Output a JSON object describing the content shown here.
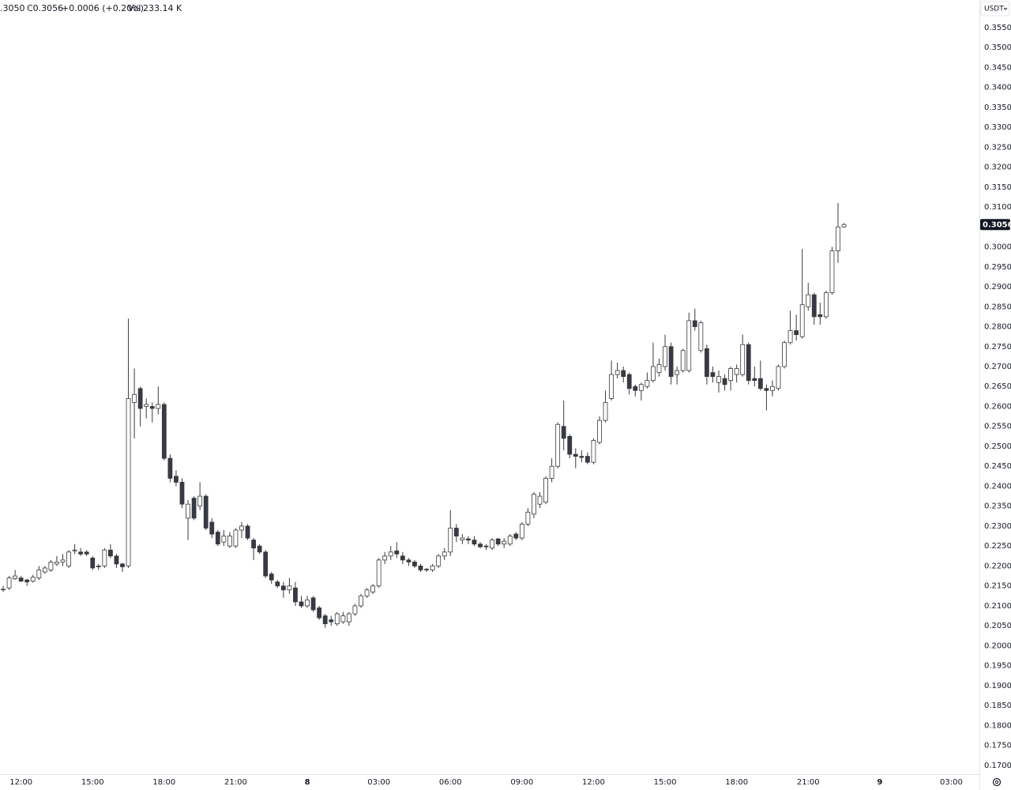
{
  "chart_data": {
    "type": "candlestick",
    "header": {
      "open_text": ".3050",
      "close_text": "C0.3056",
      "change_text": "+0.0006 (+0.20%)",
      "volume_label": "Vol",
      "volume_text": "233.14 K"
    },
    "currency": "USDT",
    "categories": [
      null,
      null,
      null,
      "12:00",
      null,
      null,
      null,
      null,
      null,
      null,
      null,
      null,
      null,
      null,
      null,
      "15:00",
      null,
      null,
      null,
      null,
      null,
      null,
      null,
      null,
      null,
      null,
      null,
      "18:00",
      null,
      null,
      null,
      null,
      null,
      null,
      null,
      null,
      null,
      null,
      null,
      "21:00",
      null,
      null,
      null,
      null,
      null,
      null,
      null,
      null,
      null,
      null,
      null,
      "8",
      null,
      null,
      null,
      null,
      null,
      null,
      null,
      null,
      null,
      null,
      null,
      "03:00",
      null,
      null,
      null,
      null,
      null,
      null,
      null,
      null,
      null,
      null,
      null,
      "06:00",
      null,
      null,
      null,
      null,
      null,
      null,
      null,
      null,
      null,
      null,
      null,
      "09:00",
      null,
      null,
      null,
      null,
      null,
      null,
      null,
      null,
      null,
      null,
      null,
      "12:00",
      null,
      null,
      null,
      null,
      null,
      null,
      null,
      null,
      null,
      null,
      null,
      "15:00",
      null,
      null,
      null,
      null,
      null,
      null,
      null,
      null,
      null,
      null,
      null,
      "18:00",
      null,
      null,
      null,
      null,
      null,
      null,
      null,
      null,
      null,
      null,
      null,
      "21:00",
      null,
      null,
      null,
      null,
      null,
      null,
      null,
      null,
      null,
      null,
      null,
      "9",
      null,
      null,
      null,
      null,
      null,
      null,
      null,
      null,
      null,
      null,
      null,
      "03:00",
      null,
      null,
      null,
      null
    ],
    "open": [
      0.214,
      0.2145,
      0.2168,
      0.217,
      0.2165,
      0.2162,
      0.217,
      0.2185,
      0.219,
      0.2205,
      0.221,
      0.22,
      0.2238,
      0.2235,
      0.2235,
      0.222,
      0.22,
      0.22,
      0.224,
      0.2225,
      0.2205,
      0.22,
      0.261,
      0.2645,
      0.26,
      0.26,
      0.2595,
      0.2605,
      0.247,
      0.2425,
      0.241,
      0.232,
      0.237,
      0.235,
      0.2375,
      0.231,
      0.2285,
      0.226,
      0.225,
      0.225,
      0.229,
      0.23,
      0.2265,
      0.225,
      0.2235,
      0.218,
      0.216,
      0.215,
      0.214,
      0.2145,
      0.211,
      0.21,
      0.212,
      0.2095,
      0.2075,
      0.2065,
      0.2055,
      0.206,
      0.206,
      0.208,
      0.21,
      0.2125,
      0.2135,
      0.215,
      0.2215,
      0.2225,
      0.2238,
      0.2225,
      0.2215,
      0.221,
      0.22,
      0.2192,
      0.219,
      0.22,
      0.2225,
      0.2235,
      0.2295,
      0.2265,
      0.2268,
      0.2265,
      0.2255,
      0.225,
      0.2245,
      0.2268,
      0.2255,
      0.2255,
      0.228,
      0.227,
      0.2305,
      0.233,
      0.2355,
      0.236,
      0.242,
      0.245,
      0.255,
      0.2525,
      0.248,
      0.2475,
      0.2475,
      0.246,
      0.251,
      0.2565,
      0.262,
      0.268,
      0.269,
      0.268,
      0.265,
      0.264,
      0.265,
      0.2665,
      0.2685,
      0.27,
      0.275,
      0.268,
      0.269,
      0.269,
      0.2815,
      0.274,
      0.2745,
      0.2685,
      0.266,
      0.267,
      0.2665,
      0.268,
      0.268,
      0.2755,
      0.267,
      0.267,
      0.2645,
      0.264,
      0.2645,
      0.27,
      0.276,
      0.279,
      0.2775,
      0.285,
      0.288,
      0.283,
      0.2825,
      0.2885,
      0.299,
      0.305,
      null,
      null,
      null,
      null,
      null,
      null,
      null,
      null,
      null,
      null,
      null,
      null,
      null,
      null,
      null,
      null,
      null,
      null,
      null,
      null,
      null,
      null
    ],
    "high": [
      0.215,
      0.2175,
      0.219,
      0.2175,
      0.2168,
      0.2178,
      0.22,
      0.22,
      0.2215,
      0.2225,
      0.223,
      0.224,
      0.2255,
      0.2245,
      0.224,
      0.2225,
      0.2205,
      0.2245,
      0.2255,
      0.223,
      0.2208,
      0.282,
      0.2695,
      0.265,
      0.262,
      0.261,
      0.265,
      0.261,
      0.248,
      0.244,
      0.242,
      0.2365,
      0.2375,
      0.241,
      0.238,
      0.232,
      0.229,
      0.229,
      0.2285,
      0.2295,
      0.231,
      0.2305,
      0.227,
      0.2255,
      0.224,
      0.2185,
      0.2165,
      0.216,
      0.217,
      0.216,
      0.2125,
      0.2125,
      0.2125,
      0.21,
      0.208,
      0.2075,
      0.2085,
      0.2085,
      0.2085,
      0.2105,
      0.213,
      0.2145,
      0.2155,
      0.222,
      0.2235,
      0.225,
      0.226,
      0.2235,
      0.222,
      0.2215,
      0.2205,
      0.2195,
      0.2205,
      0.223,
      0.2245,
      0.234,
      0.2305,
      0.228,
      0.2275,
      0.2275,
      0.226,
      0.2255,
      0.227,
      0.227,
      0.227,
      0.228,
      0.2285,
      0.231,
      0.2345,
      0.2385,
      0.2385,
      0.2425,
      0.247,
      0.256,
      0.2615,
      0.253,
      0.2495,
      0.249,
      0.2485,
      0.252,
      0.2575,
      0.264,
      0.2715,
      0.271,
      0.27,
      0.2685,
      0.2655,
      0.266,
      0.2685,
      0.276,
      0.272,
      0.278,
      0.276,
      0.27,
      0.2745,
      0.2835,
      0.2845,
      0.2815,
      0.2755,
      0.27,
      0.269,
      0.268,
      0.27,
      0.2705,
      0.278,
      0.276,
      0.27,
      0.2715,
      0.2655,
      0.2665,
      0.2705,
      0.2765,
      0.284,
      0.283,
      0.2995,
      0.291,
      0.2885,
      0.286,
      0.289,
      0.3,
      0.311,
      0.306,
      null,
      null,
      null,
      null,
      null,
      null,
      null,
      null,
      null,
      null,
      null,
      null,
      null,
      null,
      null,
      null,
      null,
      null,
      null,
      null,
      null,
      null
    ],
    "low": [
      0.2135,
      0.214,
      0.2165,
      0.216,
      0.215,
      0.2158,
      0.2165,
      0.218,
      0.2185,
      0.22,
      0.22,
      0.2195,
      0.223,
      0.2225,
      0.2225,
      0.219,
      0.219,
      0.2195,
      0.222,
      0.2195,
      0.2185,
      0.2195,
      0.252,
      0.255,
      0.257,
      0.256,
      0.258,
      0.2465,
      0.241,
      0.24,
      0.2345,
      0.2265,
      0.2315,
      0.234,
      0.229,
      0.227,
      0.225,
      0.225,
      0.2245,
      0.2245,
      0.227,
      0.2265,
      0.2215,
      0.223,
      0.217,
      0.2155,
      0.2145,
      0.212,
      0.213,
      0.21,
      0.2095,
      0.2095,
      0.2085,
      0.2065,
      0.2045,
      0.205,
      0.205,
      0.2055,
      0.205,
      0.2075,
      0.2095,
      0.212,
      0.213,
      0.2145,
      0.2205,
      0.2215,
      0.222,
      0.2205,
      0.22,
      0.2195,
      0.2185,
      0.2185,
      0.2185,
      0.2195,
      0.2215,
      0.2225,
      0.226,
      0.2255,
      0.2255,
      0.225,
      0.2245,
      0.224,
      0.224,
      0.225,
      0.2245,
      0.225,
      0.2265,
      0.2265,
      0.23,
      0.232,
      0.2345,
      0.2355,
      0.241,
      0.2445,
      0.249,
      0.247,
      0.2445,
      0.246,
      0.2455,
      0.2455,
      0.2505,
      0.256,
      0.2615,
      0.267,
      0.266,
      0.263,
      0.2625,
      0.2615,
      0.2645,
      0.266,
      0.2675,
      0.269,
      0.2655,
      0.2655,
      0.2685,
      0.2685,
      0.279,
      0.2735,
      0.2655,
      0.266,
      0.2635,
      0.264,
      0.264,
      0.266,
      0.2675,
      0.2655,
      0.265,
      0.264,
      0.259,
      0.2625,
      0.264,
      0.2695,
      0.2755,
      0.2765,
      0.277,
      0.284,
      0.2805,
      0.2805,
      0.282,
      0.288,
      0.296,
      0.3048,
      null,
      null,
      null,
      null,
      null,
      null,
      null,
      null,
      null,
      null,
      null,
      null,
      null,
      null,
      null,
      null,
      null,
      null,
      null,
      null,
      null,
      null
    ],
    "close": [
      0.2142,
      0.217,
      0.2175,
      0.2162,
      0.216,
      0.2172,
      0.219,
      0.2195,
      0.221,
      0.221,
      0.2215,
      0.2235,
      0.224,
      0.223,
      0.223,
      0.2195,
      0.2198,
      0.224,
      0.2225,
      0.2205,
      0.2198,
      0.262,
      0.263,
      0.2595,
      0.2605,
      0.2595,
      0.2605,
      0.247,
      0.242,
      0.241,
      0.2355,
      0.2355,
      0.232,
      0.2375,
      0.2295,
      0.228,
      0.2255,
      0.2275,
      0.2275,
      0.229,
      0.23,
      0.227,
      0.2245,
      0.2235,
      0.2175,
      0.2165,
      0.215,
      0.214,
      0.215,
      0.211,
      0.21,
      0.2115,
      0.209,
      0.207,
      0.2055,
      0.206,
      0.208,
      0.2075,
      0.208,
      0.21,
      0.2125,
      0.214,
      0.215,
      0.2215,
      0.2225,
      0.2235,
      0.223,
      0.2215,
      0.221,
      0.22,
      0.219,
      0.219,
      0.22,
      0.2225,
      0.2235,
      0.2295,
      0.2275,
      0.227,
      0.2265,
      0.2255,
      0.2248,
      0.2248,
      0.2265,
      0.2255,
      0.2262,
      0.2275,
      0.227,
      0.2305,
      0.2335,
      0.238,
      0.2375,
      0.242,
      0.245,
      0.2555,
      0.252,
      0.248,
      0.2475,
      0.2472,
      0.246,
      0.2515,
      0.2565,
      0.261,
      0.268,
      0.269,
      0.2675,
      0.2645,
      0.264,
      0.2655,
      0.2665,
      0.27,
      0.2705,
      0.275,
      0.2675,
      0.269,
      0.274,
      0.2815,
      0.28,
      0.281,
      0.2675,
      0.2675,
      0.2675,
      0.2655,
      0.2695,
      0.2695,
      0.2755,
      0.2665,
      0.2665,
      0.2645,
      0.264,
      0.265,
      0.27,
      0.276,
      0.279,
      0.278,
      0.2855,
      0.288,
      0.2825,
      0.2825,
      0.2885,
      0.299,
      0.305,
      0.3056,
      null,
      null,
      null,
      null,
      null,
      null,
      null,
      null,
      null,
      null,
      null,
      null,
      null,
      null,
      null,
      null,
      null,
      null,
      null,
      null,
      null,
      null
    ],
    "up_color": "#ffffff",
    "down_color": "#363a45",
    "border_color": "#3a3a3a",
    "ylim": [
      0.1678,
      0.3619
    ],
    "yticks": [
      {
        "value": 0.355,
        "label": "0.3550"
      },
      {
        "value": 0.35,
        "label": "0.3500"
      },
      {
        "value": 0.345,
        "label": "0.3450"
      },
      {
        "value": 0.34,
        "label": "0.3400"
      },
      {
        "value": 0.335,
        "label": "0.3350"
      },
      {
        "value": 0.33,
        "label": "0.3300"
      },
      {
        "value": 0.325,
        "label": "0.3250"
      },
      {
        "value": 0.32,
        "label": "0.3200"
      },
      {
        "value": 0.315,
        "label": "0.3150"
      },
      {
        "value": 0.31,
        "label": "0.3100"
      },
      {
        "value": 0.3,
        "label": "0.3000"
      },
      {
        "value": 0.295,
        "label": "0.2950"
      },
      {
        "value": 0.29,
        "label": "0.2900"
      },
      {
        "value": 0.285,
        "label": "0.2850"
      },
      {
        "value": 0.28,
        "label": "0.2800"
      },
      {
        "value": 0.275,
        "label": "0.2750"
      },
      {
        "value": 0.27,
        "label": "0.2700"
      },
      {
        "value": 0.265,
        "label": "0.2650"
      },
      {
        "value": 0.26,
        "label": "0.2600"
      },
      {
        "value": 0.255,
        "label": "0.2550"
      },
      {
        "value": 0.25,
        "label": "0.2500"
      },
      {
        "value": 0.245,
        "label": "0.2450"
      },
      {
        "value": 0.24,
        "label": "0.2400"
      },
      {
        "value": 0.235,
        "label": "0.2350"
      },
      {
        "value": 0.23,
        "label": "0.2300"
      },
      {
        "value": 0.225,
        "label": "0.2250"
      },
      {
        "value": 0.22,
        "label": "0.2200"
      },
      {
        "value": 0.215,
        "label": "0.2150"
      },
      {
        "value": 0.21,
        "label": "0.2100"
      },
      {
        "value": 0.205,
        "label": "0.2050"
      },
      {
        "value": 0.2,
        "label": "0.2000"
      },
      {
        "value": 0.195,
        "label": "0.1950"
      },
      {
        "value": 0.19,
        "label": "0.1900"
      },
      {
        "value": 0.185,
        "label": "0.1850"
      },
      {
        "value": 0.18,
        "label": "0.1800"
      },
      {
        "value": 0.175,
        "label": "0.1750"
      },
      {
        "value": 0.17,
        "label": "0.1700"
      }
    ],
    "grid": false
  }
}
